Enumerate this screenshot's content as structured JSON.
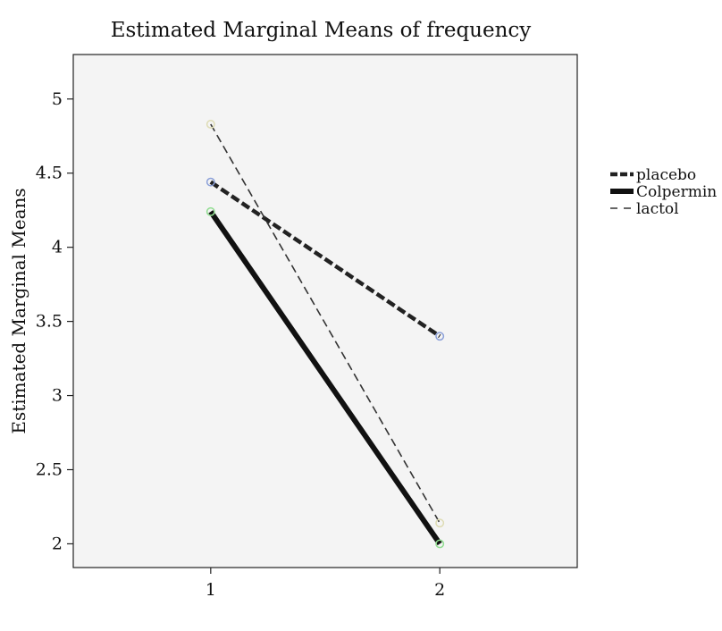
{
  "chart_data": {
    "type": "line",
    "title": "Estimated Marginal Means of frequency",
    "xlabel": "",
    "ylabel": "Estimated Marginal Means",
    "categories": [
      "1",
      "2"
    ],
    "x": [
      1,
      2
    ],
    "xlim": [
      0.4,
      2.6
    ],
    "ylim": [
      1.84,
      5.3
    ],
    "yticks": [
      2,
      2.5,
      3,
      3.5,
      4,
      4.5,
      5
    ],
    "ytick_labels": [
      "2",
      "2.5",
      "3",
      "3.5",
      "4",
      "4.5",
      "5"
    ],
    "grid": false,
    "legend_position": "right",
    "series": [
      {
        "name": "placebo",
        "values": [
          4.44,
          3.4
        ],
        "color": "#222222",
        "marker_color": "#8a9fd8",
        "style": "dashed-thick"
      },
      {
        "name": "Colpermin",
        "values": [
          4.24,
          2.0
        ],
        "color": "#111111",
        "marker_color": "#8fdc8f",
        "style": "solid-thick"
      },
      {
        "name": "lactol",
        "values": [
          4.83,
          2.14
        ],
        "color": "#333333",
        "marker_color": "#dedcb4",
        "style": "dashed-thin"
      }
    ],
    "plot_background": "#f4f4f4"
  }
}
